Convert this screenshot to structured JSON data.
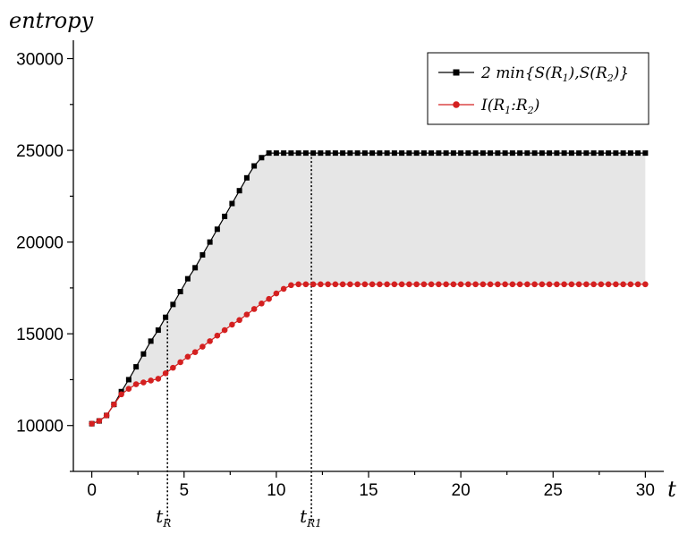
{
  "chart_data": {
    "type": "line",
    "title": "",
    "xlabel": "t",
    "ylabel": "entropy",
    "xlim": [
      -1,
      31
    ],
    "ylim": [
      7500,
      31000
    ],
    "xticks": [
      0,
      5,
      10,
      15,
      20,
      25,
      30
    ],
    "yticks": [
      10000,
      15000,
      20000,
      25000,
      30000
    ],
    "x_step": 0.4,
    "shaded_region": {
      "between": [
        "2 min{S(R1),S(R2)}",
        "I(R1:R2)"
      ],
      "color": "#e6e6e6"
    },
    "vertical_markers": [
      {
        "x": 4.1,
        "label": "t",
        "sub": "R"
      },
      {
        "x": 11.9,
        "label": "t",
        "sub": "R1"
      }
    ],
    "legend": {
      "position": "top-right",
      "entries": [
        {
          "label": "2 min{S(R1),S(R2)}",
          "color": "#000000",
          "marker": "square"
        },
        {
          "label": "I(R1:R2)",
          "color": "#d42020",
          "marker": "circle"
        }
      ]
    },
    "series": [
      {
        "name": "2 min{S(R1),S(R2)}",
        "color": "#000000",
        "marker": "square",
        "values": [
          10100,
          10250,
          10550,
          11150,
          11850,
          12500,
          13200,
          13900,
          14600,
          15200,
          15900,
          16600,
          17300,
          18000,
          18600,
          19300,
          20000,
          20700,
          21400,
          22100,
          22800,
          23500,
          24150,
          24600,
          24850,
          24850,
          24850,
          24850,
          24850,
          24850,
          24850,
          24850,
          24850,
          24850,
          24850,
          24850,
          24850,
          24850,
          24850,
          24850,
          24850,
          24850,
          24850,
          24850,
          24850,
          24850,
          24850,
          24850,
          24850,
          24850,
          24850,
          24850,
          24850,
          24850,
          24850,
          24850,
          24850,
          24850,
          24850,
          24850,
          24850,
          24850,
          24850,
          24850,
          24850,
          24850,
          24850,
          24850,
          24850,
          24850,
          24850,
          24850,
          24850,
          24850,
          24850,
          24850
        ]
      },
      {
        "name": "I(R1:R2)",
        "color": "#d42020",
        "marker": "circle",
        "values": [
          10100,
          10250,
          10550,
          11150,
          11700,
          12000,
          12250,
          12350,
          12450,
          12550,
          12850,
          13150,
          13450,
          13750,
          14000,
          14300,
          14600,
          14900,
          15200,
          15500,
          15750,
          16050,
          16350,
          16650,
          16900,
          17200,
          17450,
          17650,
          17700,
          17700,
          17700,
          17700,
          17700,
          17700,
          17700,
          17700,
          17700,
          17700,
          17700,
          17700,
          17700,
          17700,
          17700,
          17700,
          17700,
          17700,
          17700,
          17700,
          17700,
          17700,
          17700,
          17700,
          17700,
          17700,
          17700,
          17700,
          17700,
          17700,
          17700,
          17700,
          17700,
          17700,
          17700,
          17700,
          17700,
          17700,
          17700,
          17700,
          17700,
          17700,
          17700,
          17700,
          17700,
          17700,
          17700,
          17700
        ]
      }
    ]
  }
}
